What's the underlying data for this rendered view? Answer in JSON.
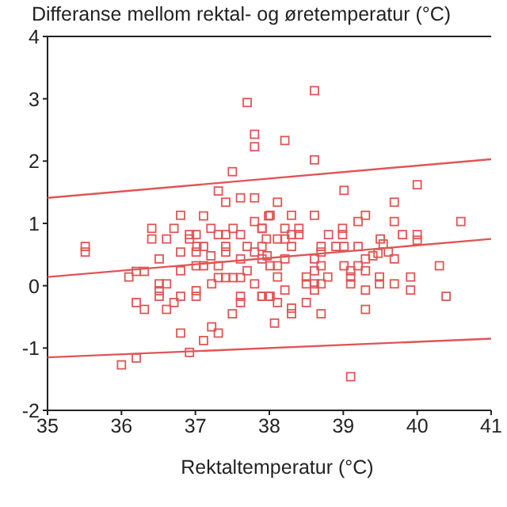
{
  "chart_data": {
    "type": "scatter",
    "title": "Differanse mellom rektal- og øretemperatur (°C)",
    "xlabel": "Rektaltemperatur (°C)",
    "xlim": [
      35,
      41
    ],
    "xticks": [
      35,
      36,
      37,
      38,
      39,
      40,
      41
    ],
    "ylim": [
      -2,
      4
    ],
    "yticks": [
      -2,
      -1,
      0,
      1,
      2,
      3,
      4
    ],
    "series": [
      {
        "marker": "square",
        "color": "#e05555",
        "x": [
          37.7,
          37.8,
          37.8,
          37.5,
          37.31,
          37.61,
          37.8,
          37.41,
          37.99,
          36.8,
          37.11,
          36.41,
          36.71,
          36.92,
          37.01,
          37.21,
          37.31,
          37.41,
          37.51,
          37.61,
          37.8,
          37.9,
          36.41,
          36.61,
          36.92,
          37.02,
          37.11,
          37.41,
          37.7,
          37.96,
          35.51,
          35.51,
          36.51,
          36.8,
          37.01,
          37.21,
          37.41,
          37.61,
          37.8,
          37.97,
          36.8,
          37.01,
          37.11,
          37.31,
          37.7,
          36.1,
          36.2,
          36.31,
          36.51,
          36.61,
          36.51,
          36.51,
          36.8,
          36.71,
          36.61,
          36.2,
          36.31,
          37.01,
          37.01,
          37.22,
          37.31,
          37.41,
          37.51,
          37.61,
          37.61,
          37.61,
          37.5,
          37.8,
          37.9,
          37.99,
          36.8,
          37.22,
          37.31,
          37.11,
          36.92,
          36.2,
          36.0,
          38.61,
          38.21,
          38.61,
          39.01,
          40.0,
          38.11,
          39.69,
          38.61,
          38.3,
          38.01,
          39.2,
          39.3,
          39.69,
          40.59,
          37.9,
          38.21,
          38.4,
          38.99,
          38.3,
          38.4,
          38.8,
          38.99,
          39.8,
          40.0,
          40.0,
          38.11,
          38.21,
          39.5,
          37.9,
          38.3,
          38.7,
          38.9,
          39.01,
          39.2,
          39.54,
          37.9,
          38.21,
          38.61,
          38.7,
          39.3,
          39.4,
          39.47,
          39.61,
          39.69,
          38.01,
          38.11,
          38.7,
          39.01,
          39.2,
          40.3,
          38.61,
          39.1,
          38.11,
          38.5,
          38.79,
          39.1,
          39.3,
          39.49,
          39.91,
          38.5,
          38.61,
          38.7,
          39.1,
          39.49,
          39.69,
          38.21,
          38.61,
          39.3,
          39.91,
          37.9,
          38.01,
          38.11,
          38.5,
          40.39,
          38.3,
          38.3,
          38.7,
          39.3,
          38.07,
          39.1
        ],
        "values": [
          2.94,
          2.43,
          2.23,
          1.83,
          1.52,
          1.41,
          1.41,
          1.34,
          1.12,
          1.13,
          1.12,
          0.92,
          0.92,
          0.82,
          0.82,
          0.92,
          0.82,
          0.82,
          0.92,
          0.82,
          1.03,
          0.92,
          0.75,
          0.75,
          0.75,
          0.63,
          0.63,
          0.63,
          0.63,
          0.75,
          0.63,
          0.54,
          0.43,
          0.54,
          0.54,
          0.48,
          0.54,
          0.43,
          0.54,
          0.48,
          0.24,
          0.32,
          0.32,
          0.32,
          0.24,
          0.14,
          0.23,
          0.23,
          0.03,
          0.03,
          -0.08,
          -0.17,
          -0.17,
          -0.27,
          -0.38,
          -0.27,
          -0.38,
          -0.08,
          -0.17,
          0.03,
          0.13,
          0.13,
          0.13,
          0.13,
          -0.17,
          -0.27,
          -0.45,
          0.03,
          -0.17,
          -0.17,
          -0.76,
          -0.66,
          -0.76,
          -0.88,
          -1.07,
          -1.16,
          -1.27,
          3.13,
          2.33,
          2.02,
          1.53,
          1.62,
          1.34,
          1.34,
          1.13,
          1.13,
          1.13,
          1.03,
          1.13,
          1.03,
          1.03,
          0.92,
          0.92,
          0.92,
          0.92,
          0.82,
          0.82,
          0.82,
          0.82,
          0.82,
          0.82,
          0.73,
          0.75,
          0.75,
          0.75,
          0.63,
          0.63,
          0.63,
          0.63,
          0.63,
          0.63,
          0.67,
          0.43,
          0.43,
          0.43,
          0.54,
          0.43,
          0.48,
          0.52,
          0.54,
          0.43,
          0.32,
          0.32,
          0.32,
          0.32,
          0.32,
          0.32,
          0.24,
          0.24,
          0.14,
          0.14,
          0.14,
          0.14,
          0.24,
          0.14,
          0.14,
          0.03,
          0.03,
          0.03,
          0.03,
          0.03,
          0.03,
          -0.07,
          -0.07,
          -0.07,
          -0.07,
          -0.17,
          -0.17,
          -0.27,
          -0.27,
          -0.17,
          -0.36,
          -0.45,
          -0.45,
          -0.38,
          -0.6,
          -1.46
        ]
      },
      {
        "type": "line",
        "marker": "none",
        "line_style": "solid",
        "color": "#e05555",
        "x": [
          35,
          41
        ],
        "values": [
          1.41,
          2.03
        ]
      },
      {
        "type": "line",
        "marker": "none",
        "line_style": "solid",
        "color": "#e05555",
        "x": [
          35,
          41
        ],
        "values": [
          0.14,
          0.75
        ]
      },
      {
        "type": "line",
        "marker": "none",
        "line_style": "solid",
        "color": "#e05555",
        "x": [
          35,
          41
        ],
        "values": [
          -1.15,
          -0.85
        ]
      }
    ]
  }
}
